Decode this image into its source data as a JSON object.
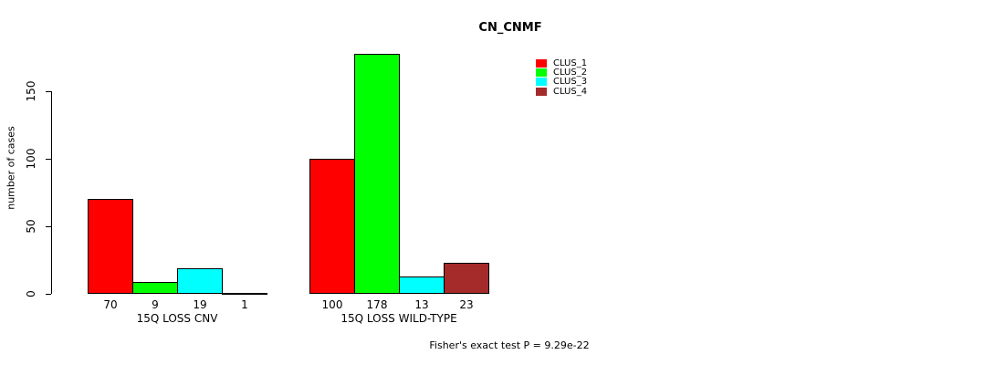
{
  "title": "CN_CNMF",
  "ylabel": "number of cases",
  "footer": "Fisher's exact test P = 9.29e-22",
  "colors": {
    "clus1": "#FF0000",
    "clus2": "#00FF00",
    "clus3": "#00FFFF",
    "clus4": "#A52A2A",
    "axis": "#000000",
    "background": "#FFFFFF"
  },
  "chart_data": {
    "type": "bar",
    "title": "CN_CNMF",
    "xlabel": "",
    "ylabel": "number of cases",
    "ylim": [
      0,
      150
    ],
    "yticks": [
      0,
      50,
      100,
      150
    ],
    "grid": false,
    "legend_position": "top-right",
    "categories": [
      "15Q LOSS CNV",
      "15Q LOSS WILD-TYPE"
    ],
    "series": [
      {
        "name": "CLUS_1",
        "color": "#FF0000",
        "values": [
          70,
          100
        ]
      },
      {
        "name": "CLUS_2",
        "color": "#00FF00",
        "values": [
          9,
          178
        ]
      },
      {
        "name": "CLUS_3",
        "color": "#00FFFF",
        "values": [
          19,
          13
        ]
      },
      {
        "name": "CLUS_4",
        "color": "#A52A2A",
        "values": [
          1,
          23
        ]
      }
    ],
    "bar_value_labels": [
      [
        70,
        9,
        19,
        1
      ],
      [
        100,
        178,
        13,
        23
      ]
    ],
    "annotation": "Fisher's exact test P = 9.29e-22"
  }
}
